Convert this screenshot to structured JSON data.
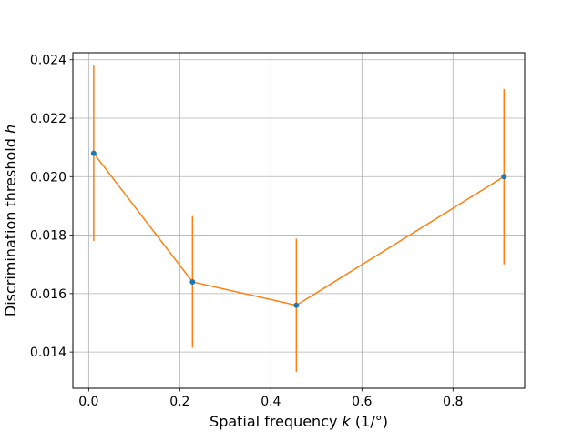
{
  "chart_data": {
    "type": "scatter",
    "title": "",
    "xlabel_parts": [
      "Spatial frequency ",
      "k",
      " (1/°)"
    ],
    "ylabel_parts": [
      "Discrimination threshold ",
      "h"
    ],
    "xlim": [
      -0.0347,
      0.9574
    ],
    "ylim": [
      0.01276,
      0.02424
    ],
    "xticks": [
      0.0,
      0.2,
      0.4,
      0.6,
      0.8
    ],
    "xtick_labels": [
      "0.0",
      "0.2",
      "0.4",
      "0.6",
      "0.8"
    ],
    "yticks": [
      0.014,
      0.016,
      0.018,
      0.02,
      0.022,
      0.024
    ],
    "ytick_labels": [
      "0.014",
      "0.016",
      "0.018",
      "0.020",
      "0.022",
      "0.024"
    ],
    "grid": true,
    "series": [
      {
        "x": [
          0.011,
          0.228,
          0.456,
          0.912
        ],
        "y": [
          0.0208,
          0.0164,
          0.0156,
          0.02
        ],
        "yerr": [
          0.003,
          0.00225,
          0.00228,
          0.003
        ],
        "marker_color": "#1f77b4",
        "line_color": "#ff7f0e"
      }
    ]
  }
}
